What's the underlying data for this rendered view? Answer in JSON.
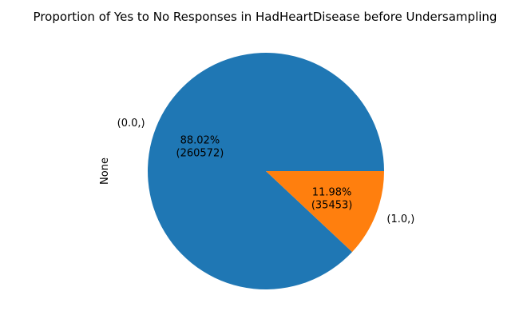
{
  "chart_data": {
    "type": "pie",
    "title": "Proportion of Yes to No Responses in HadHeartDisease before Undersampling",
    "ylabel": "None",
    "slices": [
      {
        "label": "(0.0,)",
        "value": 260572,
        "percent_label": "88.02%",
        "count_label": "(260572)",
        "color": "#1f77b4"
      },
      {
        "label": "(1.0,)",
        "value": 35453,
        "percent_label": "11.98%",
        "count_label": "(35453)",
        "color": "#ff7f0e"
      }
    ],
    "start_angle_deg": 0,
    "direction": "counterclockwise"
  }
}
